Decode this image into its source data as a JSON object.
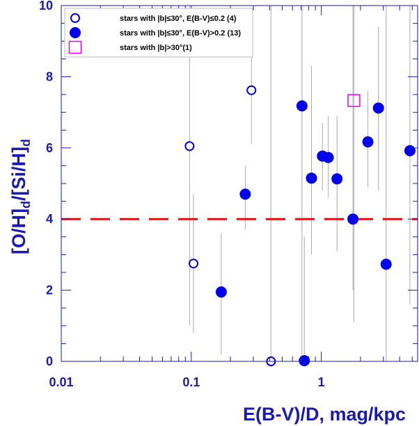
{
  "chart_data": {
    "type": "scatter",
    "x_scale": "log",
    "xlim": [
      0.01,
      5.5
    ],
    "ylim": [
      0,
      10
    ],
    "xlabel": "E(B-V)/D, mag/kpc",
    "ylabel_main": "[O/H]",
    "ylabel_sub1": "d",
    "ylabel_mid": "/[Si/H]",
    "ylabel_sub2": "d",
    "x_ticks": [
      {
        "value": 0.01,
        "label": "0.01"
      },
      {
        "value": 0.1,
        "label": "0.1"
      },
      {
        "value": 1,
        "label": "1"
      }
    ],
    "y_ticks": [
      {
        "value": 0,
        "label": "0"
      },
      {
        "value": 2,
        "label": "2"
      },
      {
        "value": 4,
        "label": "4"
      },
      {
        "value": 6,
        "label": "6"
      },
      {
        "value": 8,
        "label": "8"
      },
      {
        "value": 10,
        "label": "10"
      }
    ],
    "grid": false,
    "legend_position": "top-left",
    "legend": [
      {
        "label": "stars with |b|≤30°, E(B-V)≤0.2 (4)",
        "marker": "open-circle"
      },
      {
        "label": "stars with |b|≤30°, E(B-V)>0.2 (13)",
        "marker": "filled-circle"
      },
      {
        "label": "stars with |b|>30°(1)",
        "marker": "open-square"
      }
    ],
    "reference_line": {
      "y": 4,
      "style": "dashed",
      "color": "#e01010"
    },
    "colors": {
      "axes": "#1a1ab0",
      "points": "#0000ee",
      "square": "#ee00ee",
      "errorbar": "#a8a8b8",
      "refline": "#e01010"
    },
    "series": [
      {
        "marker": "open-circle",
        "points": [
          {
            "x": 0.097,
            "y": 6.05,
            "ylo": 1.0,
            "yhi": 10.0
          },
          {
            "x": 0.104,
            "y": 2.75,
            "ylo": 0.8,
            "yhi": 4.7
          },
          {
            "x": 0.29,
            "y": 7.62,
            "ylo": 6.1,
            "yhi": 9.3
          },
          {
            "x": 0.41,
            "y": 0.0,
            "ylo": 0.0,
            "yhi": 10.0
          }
        ]
      },
      {
        "marker": "filled-circle",
        "points": [
          {
            "x": 0.17,
            "y": 1.95,
            "ylo": 0.2,
            "yhi": 3.6
          },
          {
            "x": 0.26,
            "y": 4.7,
            "ylo": 3.7,
            "yhi": 5.5
          },
          {
            "x": 0.71,
            "y": 7.18,
            "ylo": 0.0,
            "yhi": 10.0
          },
          {
            "x": 0.74,
            "y": 0.02,
            "ylo": 0.0,
            "yhi": 3.5
          },
          {
            "x": 0.84,
            "y": 5.15,
            "ylo": 3.0,
            "yhi": 8.3
          },
          {
            "x": 1.02,
            "y": 5.77,
            "ylo": 4.8,
            "yhi": 6.7
          },
          {
            "x": 1.13,
            "y": 5.73,
            "ylo": 4.6,
            "yhi": 6.9
          },
          {
            "x": 1.32,
            "y": 5.13,
            "ylo": 3.1,
            "yhi": 6.9
          },
          {
            "x": 1.75,
            "y": 4.0,
            "ylo": 2.0,
            "yhi": 10.0
          },
          {
            "x": 2.28,
            "y": 6.17,
            "ylo": 4.9,
            "yhi": 7.6
          },
          {
            "x": 2.75,
            "y": 7.12,
            "ylo": 4.8,
            "yhi": 9.4
          },
          {
            "x": 3.15,
            "y": 2.73,
            "ylo": 0.0,
            "yhi": 10.0
          },
          {
            "x": 4.8,
            "y": 5.92,
            "ylo": 1.6,
            "yhi": 10.0
          }
        ]
      },
      {
        "marker": "open-square",
        "points": [
          {
            "x": 1.78,
            "y": 7.33,
            "ylo": 1.1,
            "yhi": 10.0
          }
        ]
      }
    ]
  }
}
